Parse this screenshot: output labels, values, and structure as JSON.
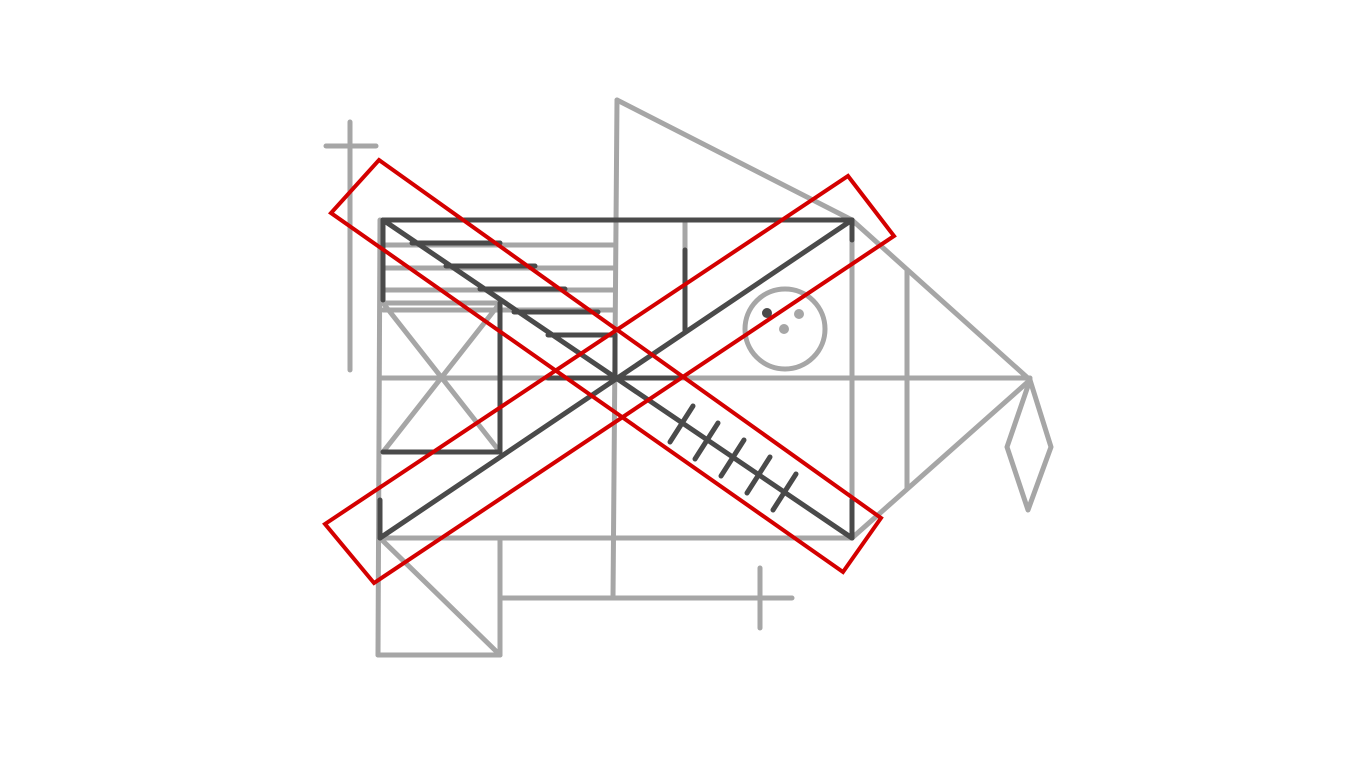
{
  "colors": {
    "background": "#ffffff",
    "light_stroke": "#a6a6a6",
    "dark_stroke": "#4a4a4a",
    "highlight_red": "#d40000"
  },
  "figure": {
    "description_hidden": "",
    "highlight_shape": "two crossing red rectangles forming an X over the highlighted dark structure"
  }
}
